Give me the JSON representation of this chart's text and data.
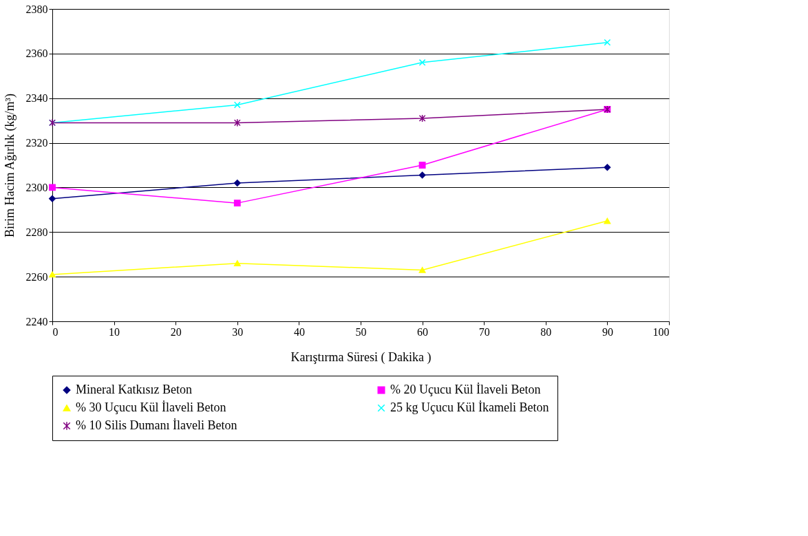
{
  "chart_data": {
    "type": "line",
    "xlabel": "Karıştırma Süresi ( Dakika )",
    "ylabel": "Birim Hacim Ağırlık (kg/m³)",
    "x": [
      0,
      30,
      60,
      90
    ],
    "xlim": [
      0,
      100
    ],
    "xticks": [
      0,
      10,
      20,
      30,
      40,
      50,
      60,
      70,
      80,
      90,
      100
    ],
    "ylim": [
      2240,
      2380
    ],
    "yticks": [
      2240,
      2260,
      2280,
      2300,
      2320,
      2340,
      2360,
      2380
    ],
    "grid": "y",
    "legend": "bottom",
    "line_style": "solid",
    "series": [
      {
        "name": "Mineral Katkısız Beton",
        "color": "#000080",
        "marker": "diamond",
        "values": [
          2295,
          2302,
          2305.5,
          2309
        ]
      },
      {
        "name": "% 20 Uçucu Kül İlaveli Beton",
        "color": "#ff00ff",
        "marker": "square",
        "values": [
          2300,
          2293,
          2310,
          2335
        ]
      },
      {
        "name": "% 30 Uçucu Kül İlaveli Beton",
        "color": "#ffff00",
        "marker": "triangle",
        "values": [
          2261,
          2266,
          2263,
          2285
        ]
      },
      {
        "name": "25 kg Uçucu Kül İkameli Beton",
        "color": "#00ffff",
        "marker": "cross",
        "values": [
          2329,
          2337,
          2356,
          2365
        ]
      },
      {
        "name": "% 10 Silis Dumanı İlaveli Beton",
        "color": "#800080",
        "marker": "cross",
        "values": [
          2329,
          2329,
          2331,
          2335
        ]
      }
    ]
  }
}
